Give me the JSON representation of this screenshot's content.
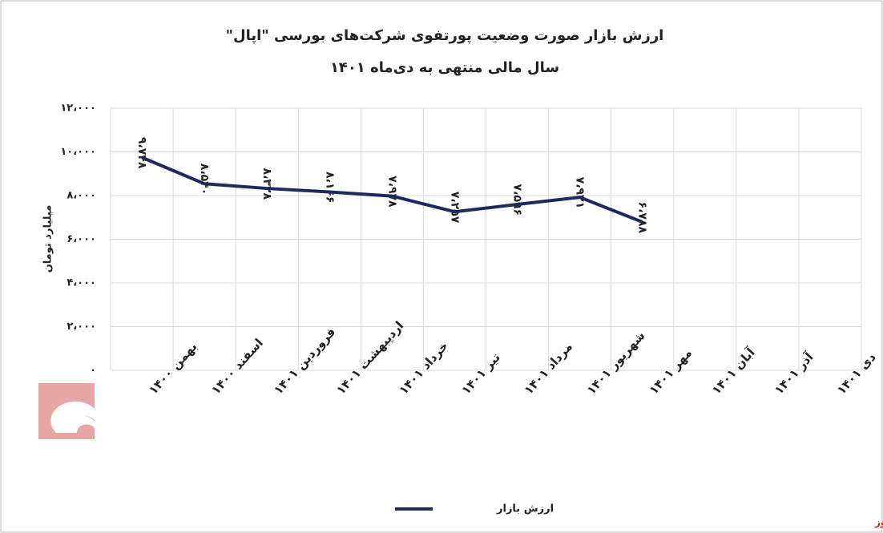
{
  "chart_data": {
    "type": "line",
    "title": "ارزش بازار صورت وضعیت پورتفوی شرکت‌های بورسی \"اپال\"",
    "subtitle": "سال مالی منتهی به دی‌ماه ۱۴۰۱",
    "y_label": "میلیارد تومان",
    "categories": [
      "بهمن ۱۴۰۰",
      "اسفند ۱۴۰۰",
      "فروردین ۱۴۰۱",
      "اردیبهشت ۱۴۰۱",
      "خرداد ۱۴۰۱",
      "تیر ۱۴۰۱",
      "مرداد ۱۴۰۱",
      "شهریور ۱۴۰۱",
      "مهر ۱۴۰۱",
      "آبان ۱۴۰۱",
      "آذر ۱۴۰۱",
      "دی ۱۴۰۱"
    ],
    "series": [
      {
        "name": "ارزش بازار",
        "color": "#1f2a5c",
        "values": [
          9748,
          8540,
          8328,
          8166,
          7978,
          7257,
          7596,
          7921,
          6788,
          null,
          null,
          null
        ],
        "value_labels": [
          "۹،۷۴۸",
          "۸،۵۴۰",
          "۸،۳۲۸",
          "۸،۱۶۶",
          "۷،۹۷۸",
          "۷،۲۵۷",
          "۷،۵۹۶",
          "۷،۹۲۱",
          "۶،۷۸۸",
          null,
          null,
          null
        ]
      }
    ],
    "ylim": [
      0,
      12000
    ],
    "yticks": [
      {
        "value": 0,
        "label": "۰"
      },
      {
        "value": 2000,
        "label": "۲،۰۰۰"
      },
      {
        "value": 4000,
        "label": "۴،۰۰۰"
      },
      {
        "value": 6000,
        "label": "۶،۰۰۰"
      },
      {
        "value": 8000,
        "label": "۸،۰۰۰"
      },
      {
        "value": 10000,
        "label": "۱۰،۰۰۰"
      },
      {
        "value": 12000,
        "label": "۱۲،۰۰۰"
      }
    ],
    "grid": true,
    "legend": "bottom",
    "source": "بورس نیوز"
  }
}
